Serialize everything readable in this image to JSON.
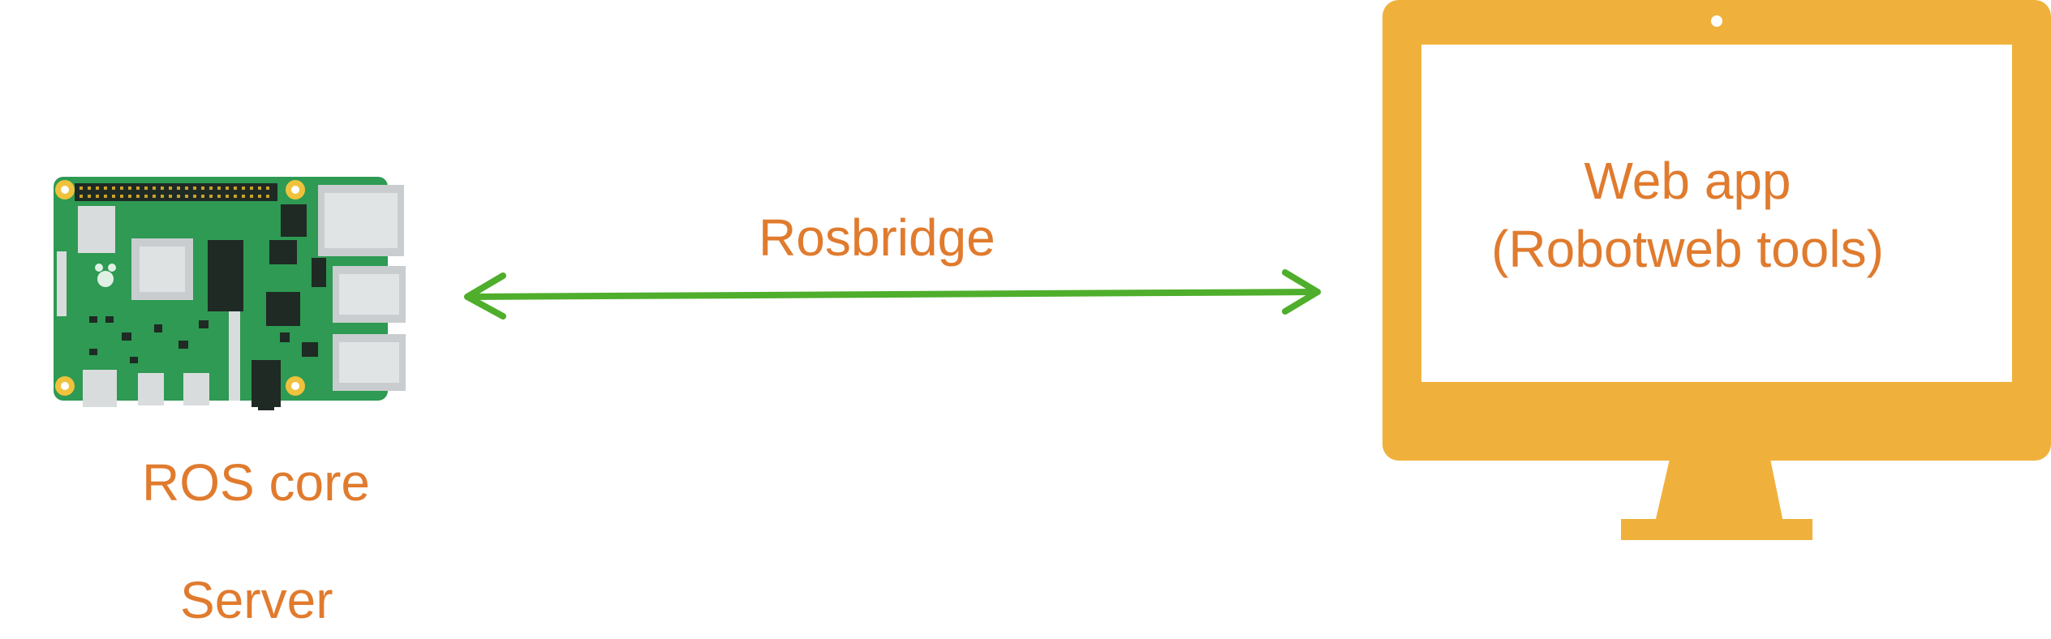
{
  "diagram": {
    "server_labels": {
      "line1": "ROS core",
      "line2": "Server"
    },
    "connection_label": "Rosbridge",
    "client_labels": {
      "line1": "Web app",
      "line2": "(Robotweb tools)"
    },
    "colors": {
      "text": "#e07b2e",
      "arrow": "#4fae2c",
      "monitor": "#f0b13c",
      "board": "#2e9a53"
    },
    "icons": {
      "server": "raspberry-pi-board-icon",
      "client": "desktop-monitor-icon",
      "connection": "double-arrow-icon"
    }
  }
}
